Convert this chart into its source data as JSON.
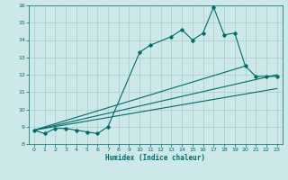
{
  "title": "",
  "xlabel": "Humidex (Indice chaleur)",
  "bg_color": "#cce8e8",
  "grid_color": "#aacccc",
  "line_color": "#006b6b",
  "xlim": [
    -0.5,
    23.5
  ],
  "ylim": [
    8,
    16
  ],
  "xticks": [
    0,
    1,
    2,
    3,
    4,
    5,
    6,
    7,
    8,
    9,
    10,
    11,
    12,
    13,
    14,
    15,
    16,
    17,
    18,
    19,
    20,
    21,
    22,
    23
  ],
  "yticks": [
    8,
    9,
    10,
    11,
    12,
    13,
    14,
    15,
    16
  ],
  "main_x": [
    0,
    1,
    2,
    3,
    4,
    5,
    6,
    7,
    10,
    11,
    13,
    14,
    15,
    16,
    17,
    18,
    19,
    20,
    21,
    22,
    23
  ],
  "main_y": [
    8.8,
    8.6,
    8.9,
    8.9,
    8.8,
    8.7,
    8.6,
    9.0,
    13.3,
    13.7,
    14.2,
    14.6,
    14.0,
    14.4,
    15.9,
    14.3,
    14.4,
    12.5,
    11.9,
    11.9,
    11.9
  ],
  "line1_x": [
    0,
    23
  ],
  "line1_y": [
    8.8,
    11.2
  ],
  "line2_x": [
    0,
    23
  ],
  "line2_y": [
    8.8,
    12.0
  ],
  "line3_x": [
    0,
    20
  ],
  "line3_y": [
    8.8,
    12.5
  ]
}
